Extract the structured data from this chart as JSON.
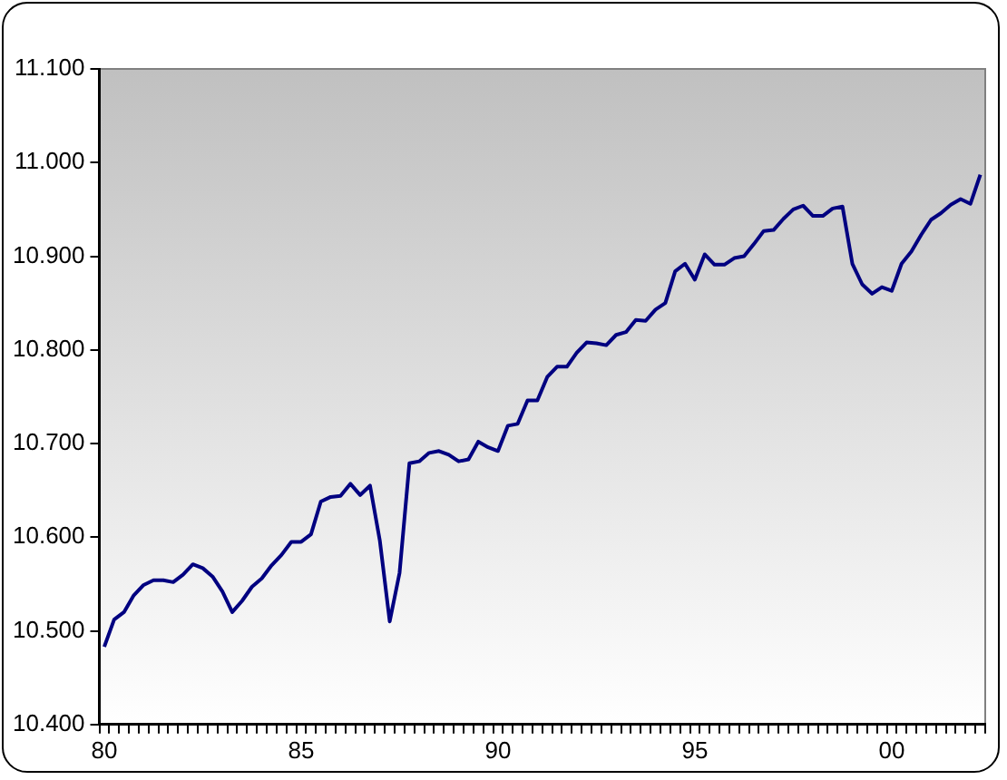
{
  "chart_data": {
    "type": "line",
    "categories": [
      "80",
      null,
      null,
      null,
      null,
      null,
      null,
      null,
      null,
      null,
      null,
      null,
      null,
      null,
      null,
      null,
      null,
      null,
      null,
      null,
      "85",
      null,
      null,
      null,
      null,
      null,
      null,
      null,
      null,
      null,
      null,
      null,
      null,
      null,
      null,
      null,
      null,
      null,
      null,
      null,
      "90",
      null,
      null,
      null,
      null,
      null,
      null,
      null,
      null,
      null,
      null,
      null,
      null,
      null,
      null,
      null,
      null,
      null,
      null,
      null,
      "95",
      null,
      null,
      null,
      null,
      null,
      null,
      null,
      null,
      null,
      null,
      null,
      null,
      null,
      null,
      null,
      null,
      null,
      null,
      null,
      "00",
      null,
      null,
      null,
      null,
      null,
      null,
      null,
      null,
      null
    ],
    "series": [
      {
        "color": "#000080",
        "values": [
          10.483,
          10.512,
          10.52,
          10.538,
          10.549,
          10.554,
          10.554,
          10.552,
          10.56,
          10.571,
          10.567,
          10.558,
          10.542,
          10.52,
          10.532,
          10.547,
          10.556,
          10.57,
          10.581,
          10.595,
          10.595,
          10.603,
          10.638,
          10.643,
          10.644,
          10.657,
          10.645,
          10.655,
          10.596,
          10.51,
          10.562,
          10.679,
          10.681,
          10.69,
          10.692,
          10.688,
          10.681,
          10.683,
          10.702,
          10.696,
          10.692,
          10.719,
          10.721,
          10.746,
          10.746,
          10.771,
          10.782,
          10.782,
          10.797,
          10.808,
          10.807,
          10.805,
          10.816,
          10.819,
          10.832,
          10.831,
          10.843,
          10.85,
          10.884,
          10.892,
          10.875,
          10.902,
          10.891,
          10.891,
          10.898,
          10.9,
          10.913,
          10.927,
          10.928,
          10.94,
          10.95,
          10.954,
          10.943,
          10.943,
          10.951,
          10.953,
          10.892,
          10.87,
          10.86,
          10.867,
          10.863,
          10.892,
          10.905,
          10.923,
          10.939,
          10.946,
          10.955,
          10.961,
          10.956,
          10.987
        ]
      }
    ],
    "ylim": [
      10.4,
      11.1
    ],
    "yticks": [
      {
        "value": 10.4,
        "label": "10.400"
      },
      {
        "value": 10.5,
        "label": "10.500"
      },
      {
        "value": 10.6,
        "label": "10.600"
      },
      {
        "value": 10.7,
        "label": "10.700"
      },
      {
        "value": 10.8,
        "label": "10.800"
      },
      {
        "value": 10.9,
        "label": "10.900"
      },
      {
        "value": 11.0,
        "label": "11.000"
      },
      {
        "value": 11.1,
        "label": "11.100"
      }
    ],
    "grid": false,
    "legend": false,
    "marker": "none",
    "line_style": "solid"
  }
}
